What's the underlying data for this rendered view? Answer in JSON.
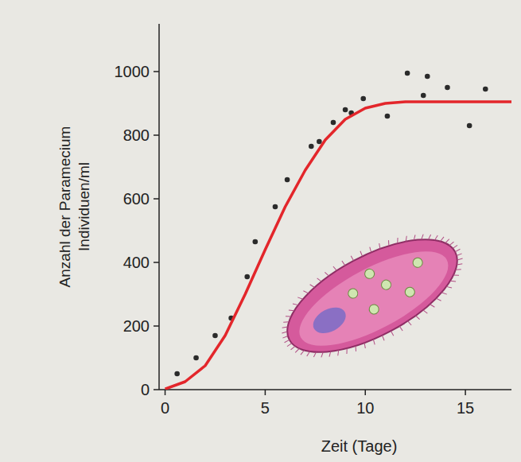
{
  "chart_data": {
    "type": "scatter",
    "x_label": "Zeit (Tage)",
    "y_label": "Anzahl der Paramecium Individuen/ml",
    "xlim": [
      -0.3,
      17.3
    ],
    "ylim": [
      0,
      1150
    ],
    "xticks": [
      0,
      5,
      10,
      15
    ],
    "yticks": [
      0,
      200,
      400,
      600,
      800,
      1000
    ],
    "grid": false,
    "series": [
      {
        "type": "scatter",
        "color": "#2b2b2b",
        "marker": "circle",
        "x": [
          0.6,
          1.55,
          2.5,
          3.3,
          4.1,
          4.5,
          5.5,
          6.1,
          7.3,
          7.7,
          8.4,
          9.0,
          9.3,
          9.9,
          11.1,
          12.1,
          12.9,
          13.1,
          14.1,
          15.2,
          16.0
        ],
        "values": [
          50,
          100,
          170,
          225,
          355,
          465,
          575,
          660,
          765,
          780,
          840,
          880,
          870,
          915,
          860,
          995,
          925,
          985,
          950,
          830,
          945
        ]
      },
      {
        "type": "line",
        "color": "#e3262b",
        "line_style": "solid",
        "x": [
          0,
          1,
          2,
          3,
          4,
          5,
          6,
          7,
          8,
          9,
          10,
          11,
          12,
          14,
          16,
          17.3
        ],
        "values": [
          2,
          25,
          75,
          170,
          300,
          440,
          575,
          690,
          785,
          850,
          885,
          900,
          905,
          905,
          905,
          905
        ]
      }
    ]
  }
}
